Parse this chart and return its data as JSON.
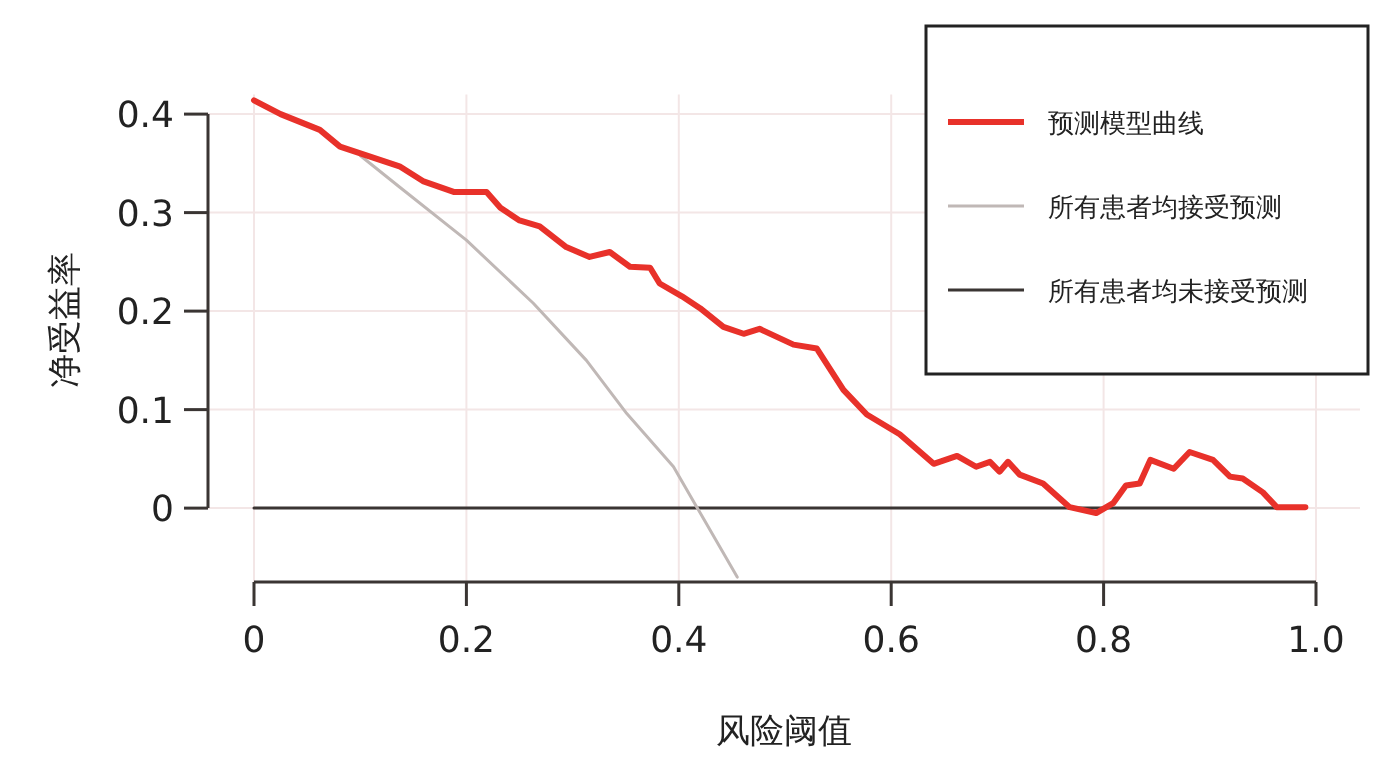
{
  "chart_data": {
    "type": "line",
    "xlabel": "风险阈值",
    "ylabel": "净受益率",
    "xlim": [
      0,
      1
    ],
    "ylim": [
      -0.075,
      0.42
    ],
    "xticks": [
      0,
      0.2,
      0.4,
      0.6,
      0.8,
      {
        "value": 1,
        "label": "1.0"
      }
    ],
    "yticks": [
      0,
      0.1,
      0.2,
      0.3,
      0.4
    ],
    "grid": true,
    "legend": "top right",
    "series": [
      {
        "name": "预测模型曲线",
        "color": "#e8312a",
        "x": [
          0,
          0.025,
          0.062,
          0.081,
          0.137,
          0.159,
          0.188,
          0.219,
          0.232,
          0.25,
          0.269,
          0.294,
          0.316,
          0.335,
          0.354,
          0.373,
          0.382,
          0.403,
          0.42,
          0.442,
          0.461,
          0.476,
          0.508,
          0.53,
          0.555,
          0.577,
          0.608,
          0.64,
          0.662,
          0.68,
          0.693,
          0.702,
          0.71,
          0.721,
          0.743,
          0.768,
          0.793,
          0.809,
          0.821,
          0.834,
          0.844,
          0.866,
          0.881,
          0.903,
          0.919,
          0.931,
          0.95,
          0.963,
          0.99
        ],
        "values": [
          0.414,
          0.4,
          0.384,
          0.367,
          0.347,
          0.332,
          0.321,
          0.321,
          0.305,
          0.292,
          0.286,
          0.265,
          0.255,
          0.26,
          0.245,
          0.244,
          0.228,
          0.215,
          0.203,
          0.184,
          0.177,
          0.182,
          0.166,
          0.162,
          0.12,
          0.095,
          0.075,
          0.045,
          0.053,
          0.042,
          0.047,
          0.037,
          0.047,
          0.034,
          0.025,
          0.001,
          -0.005,
          0.005,
          0.023,
          0.025,
          0.049,
          0.04,
          0.057,
          0.049,
          0.032,
          0.03,
          0.016,
          0.001,
          0.001
        ]
      },
      {
        "name": "所有患者均接受预测",
        "color": "#c0b8b6",
        "x": [
          0.1,
          0.137,
          0.2,
          0.263,
          0.313,
          0.351,
          0.395,
          0.417,
          0.455
        ],
        "values": [
          0.358,
          0.326,
          0.272,
          0.208,
          0.15,
          0.096,
          0.042,
          0.001,
          -0.07
        ]
      },
      {
        "name": "所有患者均未接受预测",
        "color": "#3a3533",
        "x": [
          0,
          0.99
        ],
        "values": [
          0,
          0
        ]
      }
    ]
  }
}
